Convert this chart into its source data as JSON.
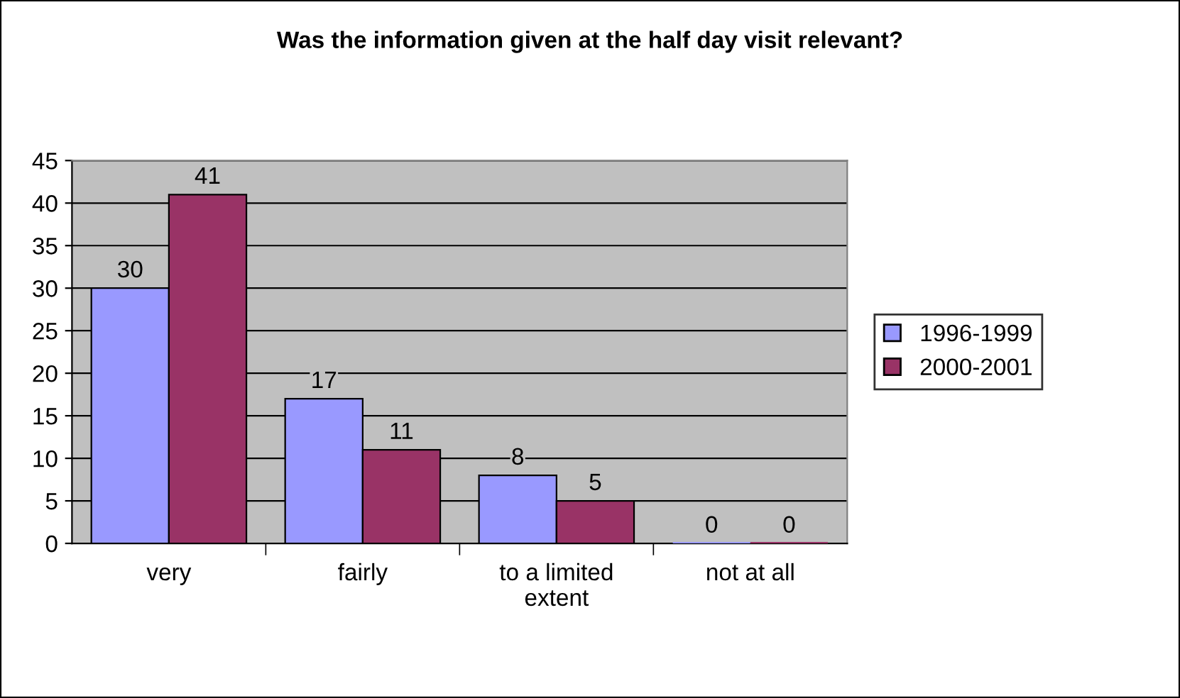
{
  "chart_data": {
    "type": "bar",
    "title": "Was the information given at the half day visit relevant?",
    "categories": [
      "very",
      "fairly",
      "to a limited extent",
      "not at all"
    ],
    "series": [
      {
        "name": "1996-1999",
        "color": "#9999ff",
        "values": [
          30,
          17,
          8,
          0
        ]
      },
      {
        "name": "2000-2001",
        "color": "#993366",
        "values": [
          41,
          11,
          5,
          0
        ]
      }
    ],
    "ylim": [
      0,
      45
    ],
    "yticks": [
      0,
      5,
      10,
      15,
      20,
      25,
      30,
      35,
      40,
      45
    ],
    "grid": "y",
    "legend": "right",
    "data_labels": true
  }
}
